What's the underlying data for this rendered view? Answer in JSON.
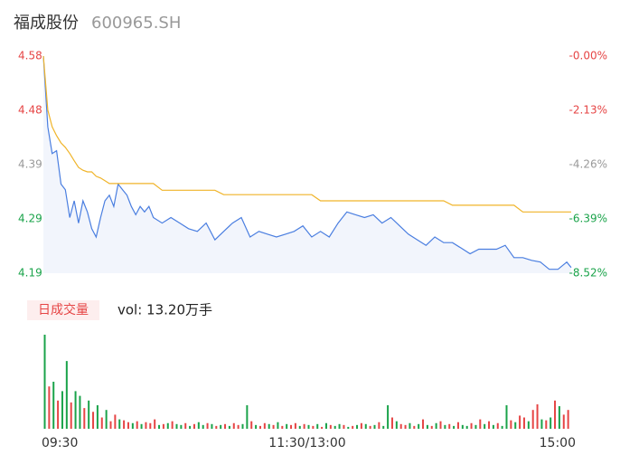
{
  "chart_data": [
    {
      "type": "line",
      "title": "福成股份",
      "subtitle": "600965.SH",
      "x": [
        0,
        2,
        4,
        6,
        8,
        10,
        12,
        14,
        16,
        18,
        20,
        22,
        24,
        26,
        28,
        30,
        32,
        34,
        36,
        38,
        40,
        42,
        44,
        46,
        48,
        50,
        54,
        58,
        62,
        66,
        70,
        74,
        78,
        82,
        86,
        90,
        94,
        98,
        102,
        106,
        110,
        114,
        118,
        122,
        126,
        130,
        134,
        138,
        142,
        146,
        150,
        154,
        158,
        162,
        166,
        170,
        174,
        178,
        182,
        186,
        190,
        194,
        198,
        202,
        206,
        210,
        214,
        218,
        222,
        226,
        230,
        234,
        238,
        240
      ],
      "xlim": [
        0,
        240
      ],
      "ylim": [
        4.19,
        4.58
      ],
      "yticks": [
        4.58,
        {
          "value": 4.4825,
          "label": "4.48"
        },
        {
          "value": 4.385,
          "label": "4.39"
        },
        {
          "value": 4.2875,
          "label": "4.29"
        },
        4.19
      ],
      "y2lim": [
        -8.52,
        0
      ],
      "y2ticks": [
        {
          "value": 0,
          "label": "-0.00%"
        },
        {
          "value": -2.13,
          "label": "-2.13%"
        },
        {
          "value": -4.26,
          "label": "-4.26%"
        },
        {
          "value": -6.39,
          "label": "-6.39%"
        },
        {
          "value": -8.52,
          "label": "-8.52%"
        }
      ],
      "tick_colors": [
        "#e64545",
        "#e64545",
        "#999999",
        "#1aa34a",
        "#1aa34a"
      ],
      "series": [
        {
          "color": "#4a7ee0",
          "fill": "#f2f5fc",
          "values": [
            4.58,
            4.453,
            4.405,
            4.41,
            4.35,
            4.34,
            4.29,
            4.32,
            4.28,
            4.32,
            4.3,
            4.27,
            4.255,
            4.29,
            4.32,
            4.33,
            4.31,
            4.35,
            4.34,
            4.33,
            4.31,
            4.295,
            4.31,
            4.3,
            4.31,
            4.29,
            4.28,
            4.29,
            4.28,
            4.27,
            4.265,
            4.28,
            4.25,
            4.265,
            4.28,
            4.29,
            4.255,
            4.265,
            4.26,
            4.255,
            4.26,
            4.265,
            4.275,
            4.255,
            4.265,
            4.255,
            4.28,
            4.3,
            4.295,
            4.29,
            4.295,
            4.28,
            4.29,
            4.275,
            4.26,
            4.25,
            4.24,
            4.255,
            4.245,
            4.245,
            4.235,
            4.225,
            4.233,
            4.233,
            4.233,
            4.24,
            4.218,
            4.218,
            4.213,
            4.21,
            4.197,
            4.197,
            4.21,
            4.2
          ]
        },
        {
          "color": "#f0b429",
          "values": [
            4.58,
            4.483,
            4.453,
            4.437,
            4.424,
            4.416,
            4.405,
            4.392,
            4.38,
            4.375,
            4.372,
            4.372,
            4.364,
            4.361,
            4.356,
            4.351,
            4.351,
            4.351,
            4.351,
            4.351,
            4.351,
            4.351,
            4.351,
            4.351,
            4.351,
            4.351,
            4.339,
            4.339,
            4.339,
            4.339,
            4.339,
            4.339,
            4.339,
            4.331,
            4.331,
            4.331,
            4.331,
            4.331,
            4.331,
            4.331,
            4.331,
            4.331,
            4.331,
            4.331,
            4.32,
            4.32,
            4.32,
            4.32,
            4.32,
            4.32,
            4.32,
            4.32,
            4.32,
            4.32,
            4.32,
            4.32,
            4.32,
            4.32,
            4.32,
            4.312,
            4.312,
            4.312,
            4.312,
            4.312,
            4.312,
            4.312,
            4.312,
            4.3,
            4.3,
            4.3,
            4.3,
            4.3,
            4.3,
            4.3
          ]
        }
      ]
    },
    {
      "type": "bar",
      "label": "日成交量",
      "summary": "vol: 13.20万手",
      "x": [
        0,
        2,
        4,
        6,
        8,
        10,
        12,
        14,
        16,
        18,
        20,
        22,
        24,
        26,
        28,
        30,
        32,
        34,
        36,
        38,
        40,
        42,
        44,
        46,
        48,
        50,
        52,
        54,
        56,
        58,
        60,
        62,
        64,
        66,
        68,
        70,
        72,
        74,
        76,
        78,
        80,
        82,
        84,
        86,
        88,
        90,
        92,
        94,
        96,
        98,
        100,
        102,
        104,
        106,
        108,
        110,
        112,
        114,
        116,
        118,
        120,
        122,
        124,
        126,
        128,
        130,
        132,
        134,
        136,
        138,
        140,
        142,
        144,
        146,
        148,
        150,
        152,
        154,
        156,
        158,
        160,
        162,
        164,
        166,
        168,
        170,
        172,
        174,
        176,
        178,
        180,
        182,
        184,
        186,
        188,
        190,
        192,
        194,
        196,
        198,
        200,
        202,
        204,
        206,
        208,
        210,
        212,
        214,
        216,
        218,
        220,
        222,
        224,
        226,
        228,
        230,
        232,
        234,
        236,
        238
      ],
      "xlim": [
        0,
        240
      ],
      "ylim": [
        0,
        100
      ],
      "xticks": [
        {
          "value": 0,
          "label": "09:30"
        },
        {
          "value": 120,
          "label": "11:30/13:00"
        },
        {
          "value": 240,
          "label": "15:00"
        }
      ],
      "values": [
        100,
        45,
        50,
        30,
        40,
        72,
        28,
        40,
        35,
        22,
        30,
        18,
        25,
        12,
        20,
        8,
        15,
        10,
        9,
        7,
        6,
        8,
        5,
        7,
        6,
        10,
        4,
        5,
        6,
        8,
        5,
        4,
        6,
        3,
        5,
        7,
        4,
        6,
        5,
        3,
        4,
        5,
        3,
        6,
        4,
        5,
        25,
        8,
        4,
        3,
        6,
        5,
        4,
        7,
        3,
        5,
        4,
        6,
        3,
        5,
        4,
        3,
        5,
        2,
        6,
        4,
        3,
        5,
        4,
        2,
        3,
        4,
        6,
        5,
        3,
        4,
        7,
        3,
        25,
        12,
        8,
        5,
        4,
        6,
        3,
        5,
        10,
        4,
        3,
        6,
        8,
        4,
        5,
        3,
        7,
        4,
        3,
        6,
        4,
        10,
        5,
        8,
        4,
        6,
        3,
        25,
        9,
        7,
        14,
        12,
        8,
        20,
        26,
        10,
        9,
        12,
        30,
        24,
        15,
        20
      ],
      "colors": [
        "#1aa34a",
        "#e64545",
        "#1aa34a",
        "#e64545",
        "#1aa34a",
        "#1aa34a",
        "#e64545",
        "#1aa34a",
        "#1aa34a",
        "#e64545",
        "#1aa34a",
        "#e64545",
        "#1aa34a",
        "#e64545",
        "#1aa34a",
        "#e64545",
        "#e64545",
        "#1aa34a",
        "#e64545",
        "#e64545",
        "#1aa34a",
        "#e64545",
        "#1aa34a",
        "#e64545",
        "#e64545",
        "#e64545",
        "#1aa34a",
        "#e64545",
        "#1aa34a",
        "#e64545",
        "#1aa34a",
        "#1aa34a",
        "#e64545",
        "#1aa34a",
        "#e64545",
        "#1aa34a",
        "#1aa34a",
        "#e64545",
        "#1aa34a",
        "#e64545",
        "#1aa34a",
        "#e64545",
        "#1aa34a",
        "#e64545",
        "#e64545",
        "#1aa34a",
        "#1aa34a",
        "#e64545",
        "#1aa34a",
        "#e64545",
        "#e64545",
        "#1aa34a",
        "#e64545",
        "#1aa34a",
        "#e64545",
        "#1aa34a",
        "#e64545",
        "#e64545",
        "#1aa34a",
        "#e64545",
        "#1aa34a",
        "#e64545",
        "#1aa34a",
        "#e64545",
        "#1aa34a",
        "#e64545",
        "#1aa34a",
        "#1aa34a",
        "#e64545",
        "#1aa34a",
        "#e64545",
        "#1aa34a",
        "#e64545",
        "#1aa34a",
        "#e64545",
        "#1aa34a",
        "#e64545",
        "#1aa34a",
        "#1aa34a",
        "#e64545",
        "#1aa34a",
        "#e64545",
        "#e64545",
        "#1aa34a",
        "#e64545",
        "#1aa34a",
        "#e64545",
        "#1aa34a",
        "#e64545",
        "#1aa34a",
        "#e64545",
        "#1aa34a",
        "#e64545",
        "#1aa34a",
        "#e64545",
        "#1aa34a",
        "#1aa34a",
        "#e64545",
        "#1aa34a",
        "#e64545",
        "#1aa34a",
        "#e64545",
        "#1aa34a",
        "#e64545",
        "#1aa34a",
        "#1aa34a",
        "#e64545",
        "#1aa34a",
        "#e64545",
        "#e64545",
        "#1aa34a",
        "#e64545",
        "#e64545",
        "#1aa34a",
        "#e64545",
        "#1aa34a",
        "#e64545",
        "#1aa34a",
        "#e64545",
        "#e64545"
      ]
    }
  ]
}
